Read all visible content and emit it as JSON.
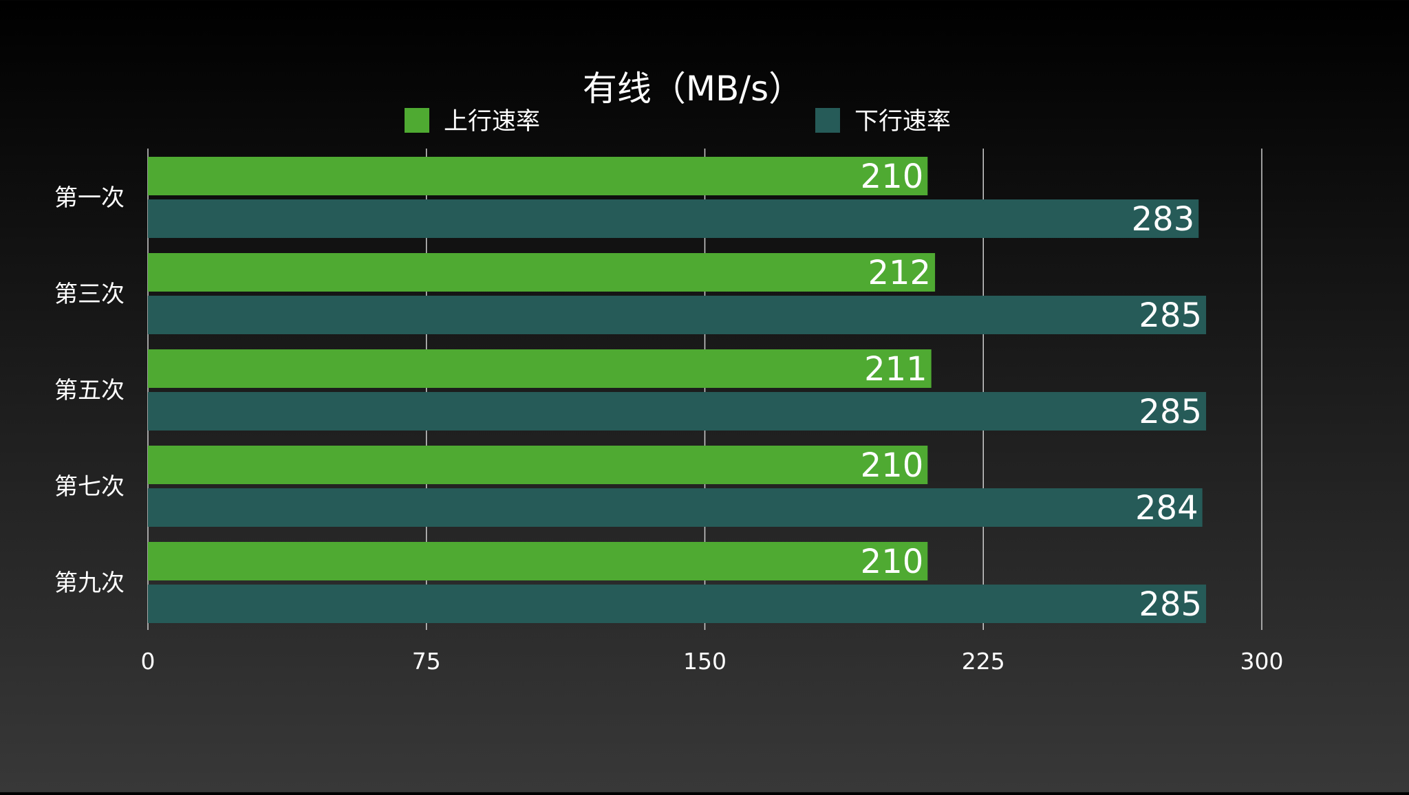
{
  "chart_data": {
    "type": "bar",
    "orientation": "horizontal",
    "title": "有线（MB/s）",
    "categories": [
      "第一次",
      "第三次",
      "第五次",
      "第七次",
      "第九次"
    ],
    "series": [
      {
        "name": "上行速率",
        "color": "#4faa32",
        "values": [
          210,
          212,
          211,
          210,
          210
        ]
      },
      {
        "name": "下行速率",
        "color": "#265b58",
        "values": [
          283,
          285,
          285,
          284,
          285
        ]
      }
    ],
    "xlim": [
      0,
      300
    ],
    "xticks": [
      "0",
      "75",
      "150",
      "225",
      "300"
    ],
    "grid": true,
    "legend_position": "top",
    "data_labels": true
  }
}
